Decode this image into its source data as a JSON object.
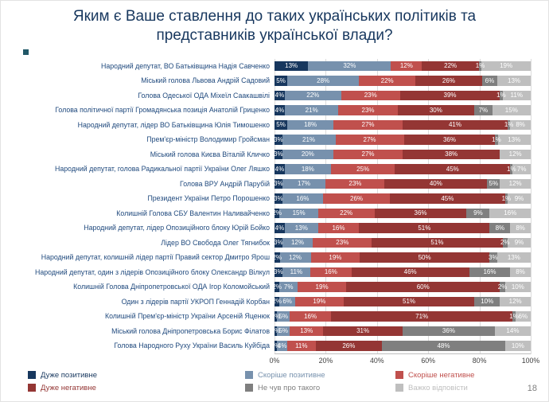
{
  "slide": {
    "title_line1": "Яким є Ваше ставлення до таких українських політиків та",
    "title_line2": "представників української влади?",
    "page_number": "18"
  },
  "chart_data": {
    "type": "bar",
    "orientation": "horizontal",
    "stacked": true,
    "grid": true,
    "legend_position": "bottom",
    "title": "Яким є Ваше ставлення до таких українських політиків та представників української влади?",
    "xlim": [
      0,
      100
    ],
    "x_ticks": [
      "0%",
      "20%",
      "40%",
      "60%",
      "80%",
      "100%"
    ],
    "categories": [
      "Народний депутат, ВО Батьківщина Надія Савченко",
      "Міський голова Львова Андрій Садовий",
      "Голова Одеської ОДА Міхеїл Саакашвілі",
      "Голова політичної партії Громадянська позиція Анатолій Гриценко",
      "Народний депутат, лідер ВО Батьківщина Юлія Тимошенко",
      "Прем'єр-міністр Володимир Гройсман",
      "Міський голова Києва Віталій Кличко",
      "Народний депутат, голова Радикальної партії України Олег Ляшко",
      "Голова ВРУ Андрій Парубій",
      "Президент України Петро Порошенко",
      "Колишній Голова СБУ Валентин Наливайченко",
      "Народний депутат, лідер Опозиційного блоку Юрій Бойко",
      "Лідер ВО Свобода Олег Тягнибок",
      "Народний депутат, колишній лідер партії Правий сектор Дмитро Ярош",
      "Народний депутат, один з лідерів Опозиційного блоку Олександр Вілкул",
      "Колишній Голова Дніпропетровської ОДА Ігор Коломойський",
      "Один з лідерів партії УКРОП Геннадій Корбан",
      "Колишній Прем'єр-міністр України Арсеній Яценюк",
      "Міський голова Дніпропетровська Борис Філатов",
      "Голова Народного Руху України Василь Куйбіда"
    ],
    "series": [
      {
        "name": "Дуже позитивне",
        "color": "#17375E",
        "values": [
          13,
          5,
          4,
          4,
          5,
          3,
          3,
          4,
          3,
          3,
          2,
          4,
          3,
          2,
          3,
          2,
          2,
          1,
          1,
          1
        ]
      },
      {
        "name": "Скоріше позитивне",
        "color": "#7791AD",
        "values": [
          32,
          28,
          22,
          21,
          18,
          21,
          20,
          18,
          17,
          16,
          15,
          13,
          12,
          12,
          11,
          7,
          6,
          5,
          5,
          4
        ]
      },
      {
        "name": "Скоріше негативне",
        "color": "#C0504D",
        "values": [
          12,
          22,
          23,
          23,
          27,
          27,
          27,
          25,
          23,
          26,
          22,
          16,
          23,
          19,
          16,
          19,
          19,
          16,
          13,
          11
        ]
      },
      {
        "name": "Дуже негативне",
        "color": "#943634",
        "values": [
          22,
          26,
          39,
          30,
          41,
          36,
          38,
          45,
          40,
          45,
          36,
          51,
          51,
          50,
          46,
          60,
          51,
          71,
          31,
          26
        ]
      },
      {
        "name": "Не чув про такого",
        "color": "#7F7F7F",
        "values": [
          1,
          6,
          1,
          7,
          1,
          1,
          0,
          1,
          5,
          1,
          9,
          8,
          2,
          3,
          16,
          2,
          10,
          1,
          36,
          48
        ]
      },
      {
        "name": "Важко відповісти",
        "color": "#BFBFBF",
        "values": [
          19,
          13,
          11,
          15,
          8,
          13,
          12,
          7,
          12,
          9,
          16,
          8,
          9,
          13,
          8,
          10,
          12,
          6,
          14,
          10
        ]
      }
    ]
  }
}
